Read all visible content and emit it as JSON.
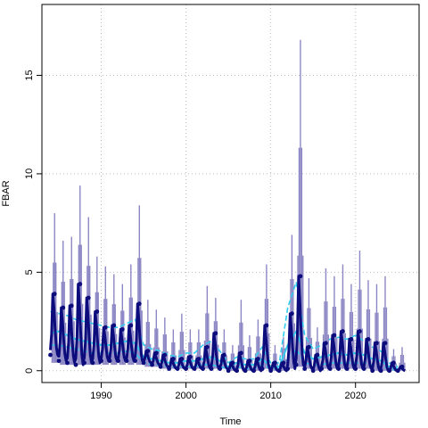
{
  "chart_data": {
    "type": "line",
    "title": "",
    "xlabel": "Time",
    "ylabel": "FBAR",
    "xlim": [
      1983.0,
      2027.5
    ],
    "ylim": [
      -0.6,
      18.6
    ],
    "xticks": [
      1990,
      2000,
      2010,
      2020
    ],
    "yticks": [
      0,
      5,
      10,
      15
    ],
    "grid": true,
    "grid_style": "dotted",
    "legend": "none",
    "colors": {
      "uncertainty": "#8c87c4",
      "median": "#0c0c7c",
      "band": "#33ccee",
      "grid": "#bdbdbd"
    },
    "series": [
      {
        "role": "uncertainty-range",
        "x": [
          1984.5,
          1985.5,
          1986.5,
          1987.5,
          1988.5,
          1989.5,
          1990.5,
          1991.5,
          1992.5,
          1993.5,
          1994.5,
          1995.5,
          1996.5,
          1997.5,
          1998.5,
          1999.5,
          2000.5,
          2001.5,
          2002.5,
          2003.5,
          2004.5,
          2005.5,
          2006.5,
          2007.5,
          2008.5,
          2009.5,
          2010.5,
          2011.5,
          2012.5,
          2013.5,
          2014.5,
          2015.5,
          2016.5,
          2017.5,
          2018.5,
          2019.5,
          2020.5,
          2021.5,
          2022.5,
          2023.5,
          2024.5,
          2025.5
        ],
        "low": [
          0.4,
          0.3,
          0.3,
          0.3,
          0.3,
          0.3,
          0.3,
          0.3,
          0.3,
          0.3,
          0.3,
          0.2,
          0.2,
          0.1,
          0.1,
          0.1,
          0.1,
          0.1,
          0.1,
          0.1,
          0.1,
          0.0,
          0.1,
          0.0,
          0.0,
          0.1,
          0.0,
          0.0,
          0.1,
          0.2,
          0.1,
          0.0,
          0.1,
          0.1,
          0.1,
          0.1,
          0.1,
          0.1,
          0.0,
          0.0,
          0.0,
          0.0
        ],
        "high": [
          8.0,
          6.6,
          6.8,
          9.4,
          7.8,
          5.8,
          5.3,
          4.9,
          4.4,
          5.4,
          8.4,
          3.6,
          3.1,
          2.7,
          2.1,
          2.9,
          2.1,
          2.1,
          4.3,
          3.7,
          2.1,
          1.3,
          3.6,
          1.8,
          2.6,
          5.4,
          1.3,
          1.7,
          6.9,
          16.8,
          4.7,
          2.2,
          5.2,
          4.8,
          5.4,
          4.4,
          6.1,
          4.6,
          4.4,
          4.8,
          1.1,
          1.2
        ]
      },
      {
        "role": "median",
        "x": [
          1984.5,
          1985.5,
          1986.5,
          1987.5,
          1988.5,
          1989.5,
          1990.5,
          1991.5,
          1992.5,
          1993.5,
          1994.5,
          1995.5,
          1996.5,
          1997.5,
          1998.5,
          1999.5,
          2000.5,
          2001.5,
          2002.5,
          2003.5,
          2004.5,
          2005.5,
          2006.5,
          2007.5,
          2008.5,
          2009.5,
          2010.5,
          2011.5,
          2012.5,
          2013.5,
          2014.5,
          2015.5,
          2016.5,
          2017.5,
          2018.5,
          2019.5,
          2020.5,
          2021.5,
          2022.5,
          2023.5,
          2024.5,
          2025.5
        ],
        "peak": [
          3.9,
          3.2,
          3.3,
          4.4,
          3.7,
          3.0,
          2.2,
          2.3,
          2.1,
          2.3,
          3.4,
          1.0,
          0.9,
          0.8,
          0.6,
          0.6,
          0.7,
          0.6,
          1.2,
          1.9,
          0.8,
          0.4,
          0.9,
          0.5,
          0.6,
          2.3,
          0.4,
          0.4,
          2.9,
          4.8,
          1.2,
          0.8,
          1.4,
          1.8,
          2.0,
          1.6,
          2.0,
          1.6,
          1.4,
          1.4,
          0.4,
          0.2
        ],
        "trough": [
          0.8,
          0.5,
          0.4,
          0.3,
          0.4,
          0.4,
          0.5,
          0.5,
          0.5,
          0.5,
          0.5,
          0.4,
          0.3,
          0.2,
          0.1,
          0.1,
          0.1,
          0.1,
          0.1,
          0.1,
          0.1,
          0.0,
          0.0,
          0.0,
          0.0,
          0.1,
          0.0,
          0.0,
          0.1,
          0.3,
          0.1,
          0.0,
          0.1,
          0.1,
          0.1,
          0.1,
          0.1,
          0.1,
          0.0,
          0.0,
          0.0,
          0.0
        ]
      },
      {
        "role": "band-smooth",
        "x": [
          1984,
          1985,
          1986,
          1987,
          1988,
          1989,
          1990,
          1991,
          1992,
          1993,
          1994,
          1995,
          1996,
          1997,
          1998,
          1999,
          2000,
          2001,
          2002,
          2003,
          2004,
          2005,
          2006,
          2007,
          2008,
          2009,
          2010,
          2011,
          2012,
          2013,
          2014,
          2015,
          2016,
          2017,
          2018,
          2019,
          2020,
          2021,
          2022,
          2023,
          2024,
          2025
        ],
        "median": [
          1.9,
          2.0,
          1.8,
          1.6,
          1.5,
          1.4,
          1.3,
          1.3,
          1.4,
          1.5,
          1.4,
          0.7,
          0.6,
          0.5,
          0.4,
          0.4,
          0.5,
          0.5,
          0.6,
          0.7,
          0.5,
          0.2,
          0.4,
          0.3,
          0.3,
          0.6,
          0.2,
          0.2,
          1.3,
          2.0,
          0.9,
          0.6,
          0.7,
          0.8,
          0.9,
          0.8,
          0.9,
          0.8,
          0.6,
          0.5,
          0.2,
          0.1
        ],
        "upper": [
          3.0,
          2.9,
          2.8,
          2.6,
          2.5,
          2.4,
          2.3,
          2.2,
          2.2,
          2.4,
          2.6,
          1.3,
          1.1,
          1.0,
          0.8,
          0.7,
          0.9,
          0.9,
          1.3,
          1.5,
          1.0,
          0.4,
          0.7,
          0.6,
          0.6,
          1.2,
          0.4,
          0.4,
          3.2,
          4.5,
          1.8,
          1.1,
          1.3,
          1.6,
          1.7,
          1.6,
          1.8,
          1.5,
          1.2,
          1.0,
          0.4,
          0.2
        ],
        "lower": [
          1.3,
          1.3,
          1.2,
          1.1,
          1.0,
          0.9,
          0.9,
          0.9,
          0.9,
          1.0,
          0.9,
          0.4,
          0.3,
          0.3,
          0.2,
          0.2,
          0.2,
          0.2,
          0.3,
          0.3,
          0.2,
          0.1,
          0.2,
          0.1,
          0.1,
          0.3,
          0.1,
          0.1,
          0.6,
          1.1,
          0.4,
          0.3,
          0.3,
          0.4,
          0.4,
          0.4,
          0.4,
          0.4,
          0.3,
          0.2,
          0.1,
          0.0
        ]
      }
    ]
  }
}
